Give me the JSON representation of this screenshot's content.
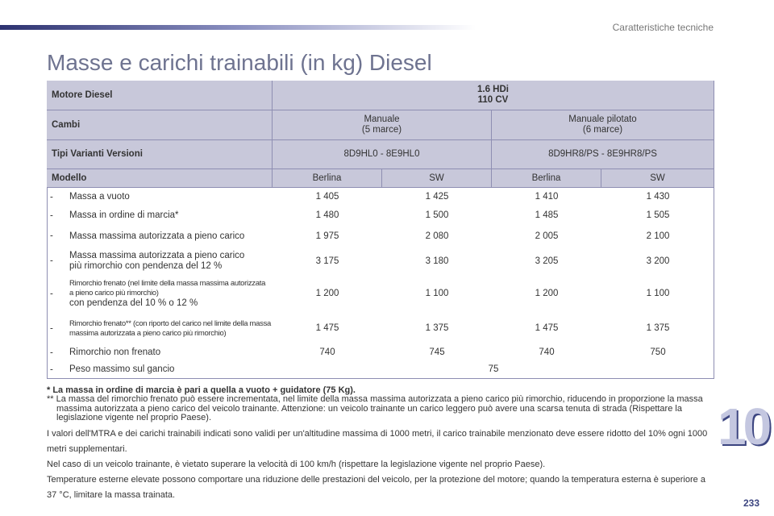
{
  "header": {
    "section": "Caratteristiche tecniche",
    "title": "Masse e carichi trainabili (in kg) Diesel",
    "chapter": "10",
    "page": "233"
  },
  "table": {
    "engine_label": "Motore Diesel",
    "engine": [
      "1.6 HDi",
      "110 CV"
    ],
    "gearbox_label": "Cambi",
    "gearboxes": [
      [
        "Manuale",
        "(5 marce)"
      ],
      [
        "Manuale pilotato",
        "(6 marce)"
      ]
    ],
    "variants_label": "Tipi Varianti Versioni",
    "variants": [
      "8D9HL0 - 8E9HL0",
      "8D9HR8/PS - 8E9HR8/PS"
    ],
    "model_label": "Modello",
    "models": [
      "Berlina",
      "SW",
      "Berlina",
      "SW"
    ],
    "rows": [
      {
        "label": [
          "Massa a vuoto"
        ],
        "values": [
          "1 405",
          "1 425",
          "1 410",
          "1 430"
        ]
      },
      {
        "label": [
          "Massa in ordine di marcia*"
        ],
        "values": [
          "1 480",
          "1 500",
          "1 485",
          "1 505"
        ]
      },
      {
        "label": [
          "Massa massima autorizzata a pieno carico"
        ],
        "values": [
          "1 975",
          "2 080",
          "2 005",
          "2 100"
        ]
      },
      {
        "label": [
          "Massa massima autorizzata a pieno carico",
          "più rimorchio con pendenza del 12 %"
        ],
        "values": [
          "3 175",
          "3 180",
          "3 205",
          "3 200"
        ]
      },
      {
        "small": "Rimorchio frenato (nel limite della massa massima autorizzata a pieno carico più rimorchio)",
        "label": [
          "con pendenza del 10 % o 12 %"
        ],
        "values": [
          "1 200",
          "1 100",
          "1 200",
          "1 100"
        ]
      },
      {
        "small": "Rimorchio frenato** (con riporto del carico nel limite della massa massima autorizzata a pieno carico più rimorchio)",
        "values": [
          "1 475",
          "1 375",
          "1 475",
          "1 375"
        ]
      },
      {
        "label": [
          "Rimorchio non frenato"
        ],
        "values": [
          "740",
          "745",
          "740",
          "750"
        ]
      },
      {
        "label": [
          "Peso massimo sul gancio"
        ],
        "values": [
          "75"
        ]
      }
    ]
  },
  "notes": {
    "footnote1": "* La massa in ordine di marcia è pari a quella a vuoto + guidatore (75 Kg).",
    "footnote2": "** La massa del rimorchio frenato può essere incrementata, nel limite della massa massima autorizzata a pieno carico più rimorchio, riducendo in proporzione la massa massima autorizzata a pieno carico del veicolo trainante. Attenzione: un veicolo trainante un carico leggero può avere una scarsa tenuta di strada (Rispettare la legislazione vigente nel proprio Paese).",
    "paragraphs": [
      "I valori dell'MTRA e dei carichi trainabili indicati sono validi per un'altitudine massima di 1000 metri, il carico trainabile menzionato deve essere ridotto del 10% ogni 1000 metri supplementari.",
      "Nel caso di un veicolo trainante, è vietato superare la velocità di 100 km/h (rispettare la legislazione vigente nel proprio Paese).",
      "Temperature esterne elevate possono comportare una riduzione delle prestazioni del veicolo, per la protezione del motore; quando la temperatura esterna è superiore a 37 °C, limitare la massa trainata."
    ]
  }
}
